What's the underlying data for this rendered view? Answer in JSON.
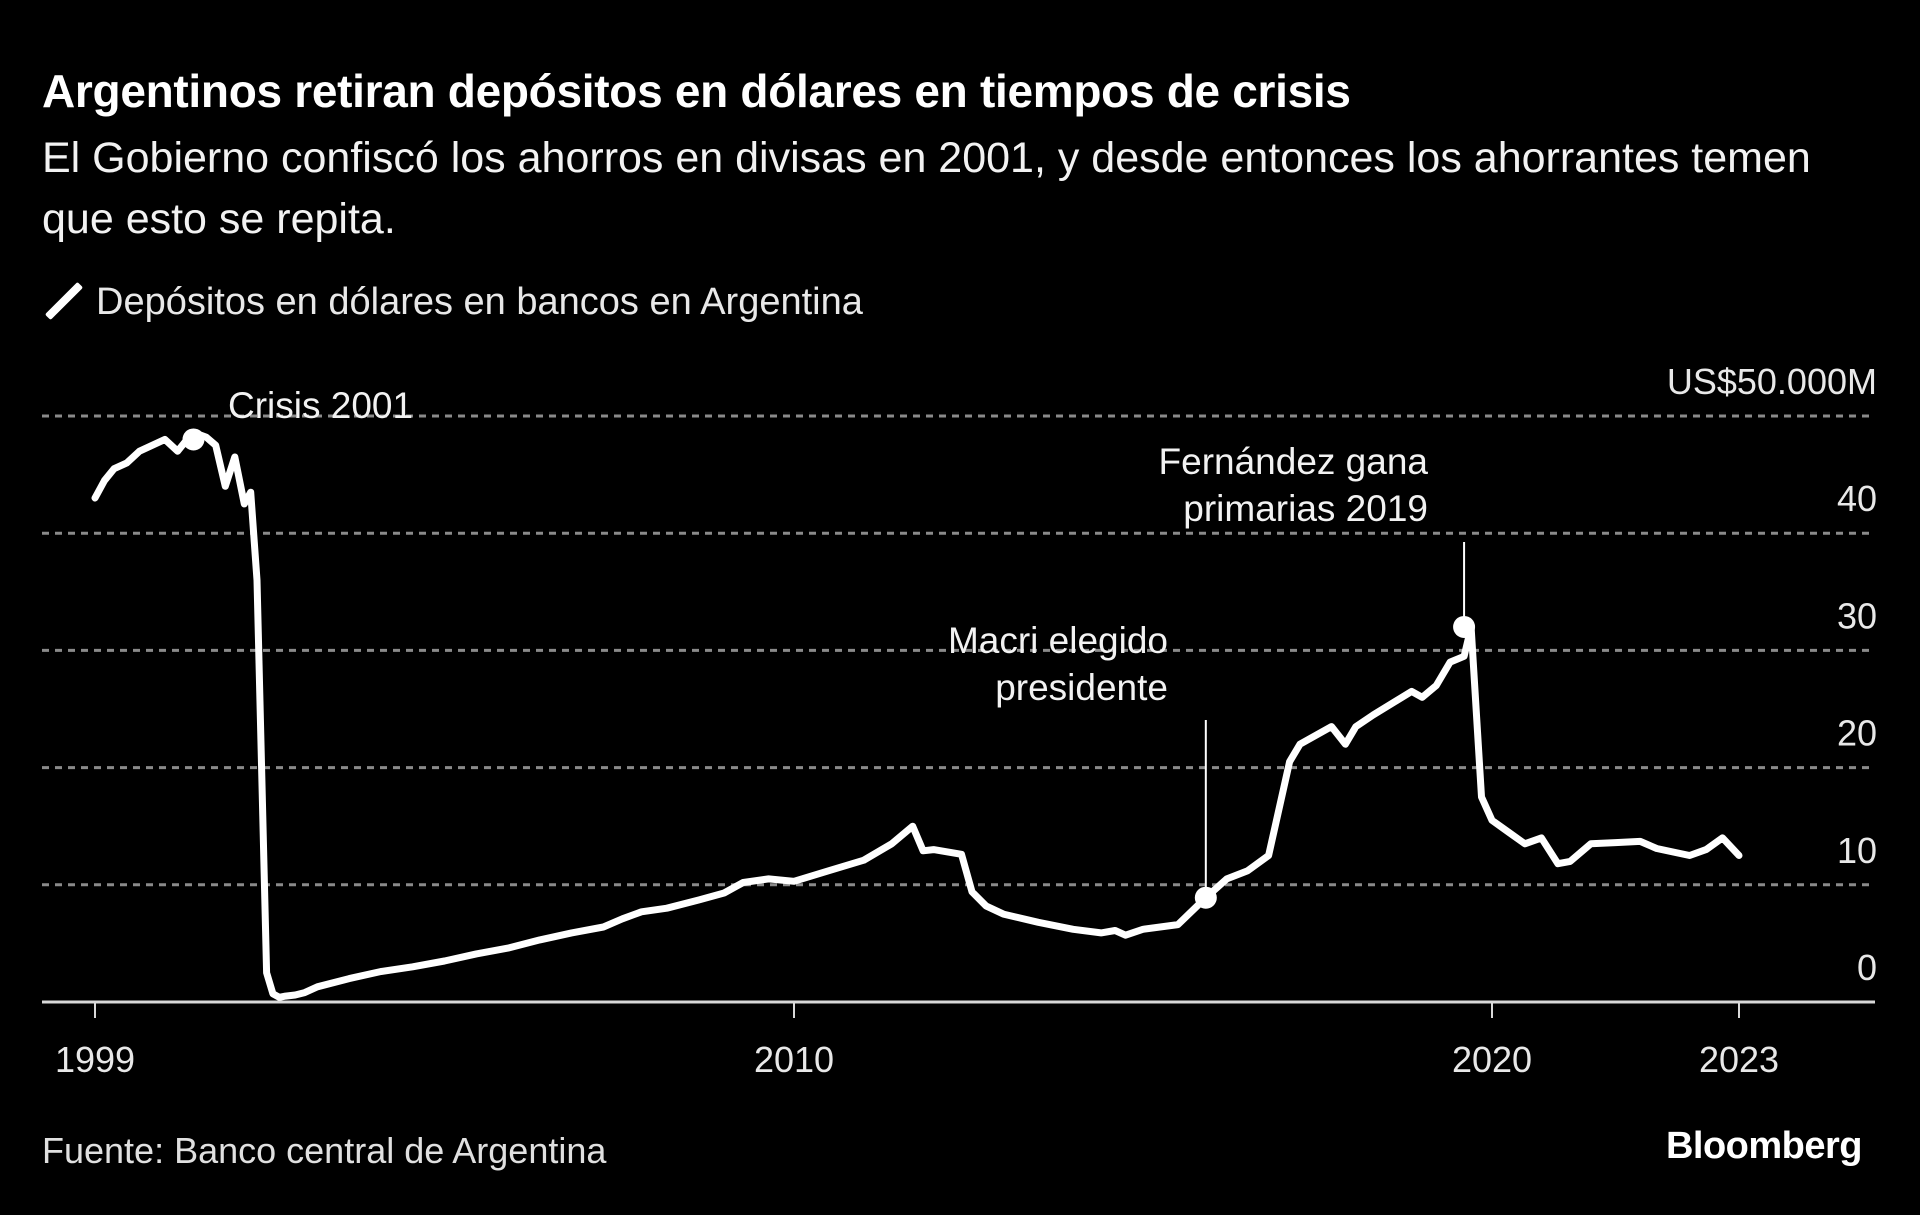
{
  "header": {
    "title": "Argentinos retiran depósitos en dólares en tiempos de crisis",
    "subtitle": "El Gobierno confiscó los ahorros en divisas en 2001, y desde entonces los ahorrantes temen que esto se repita."
  },
  "footer": {
    "source": "Fuente: Banco central de Argentina",
    "brand": "Bloomberg"
  },
  "chart_data": {
    "type": "line",
    "title": "Argentinos retiran depósitos en dólares en tiempos de crisis",
    "subtitle": "El Gobierno confiscó los ahorros en divisas en 2001, y desde entonces los ahorrantes temen que esto se repita.",
    "xlabel": "",
    "ylabel": "",
    "y_unit_label": "US$50.000M",
    "ylim": [
      0,
      50
    ],
    "yticks": [
      0,
      10,
      20,
      30,
      40,
      50
    ],
    "ytick_labels": [
      "0",
      "10",
      "20",
      "30",
      "40",
      "US$50.000M"
    ],
    "xticks": [
      1999,
      2010,
      2020,
      2023
    ],
    "xtick_labels": [
      "1999",
      "2010",
      "2020",
      "2023"
    ],
    "grid": true,
    "legend": {
      "position": "top-left",
      "entries": [
        "Depósitos en dólares en bancos en Argentina"
      ]
    },
    "colors": {
      "background": "#000000",
      "line": "#ffffff",
      "grid": "#8a8a8a",
      "text": "#ffffff"
    },
    "series": [
      {
        "name": "Depósitos en dólares en bancos en Argentina",
        "unit": "US$ miles de millones",
        "x": [
          1999.0,
          1999.15,
          1999.3,
          1999.5,
          1999.7,
          1999.9,
          2000.1,
          2000.3,
          2000.45,
          2000.6,
          2000.75,
          2000.9,
          2001.05,
          2001.2,
          2001.35,
          2001.45,
          2001.55,
          2001.7,
          2001.8,
          2001.9,
          2002.0,
          2002.15,
          2002.3,
          2002.5,
          2003.0,
          2003.5,
          2004.0,
          2004.5,
          2005.0,
          2005.5,
          2006.0,
          2006.5,
          2007.0,
          2007.3,
          2007.6,
          2008.0,
          2008.5,
          2008.9,
          2009.2,
          2009.6,
          2010.0,
          2010.5,
          2011.0,
          2011.4,
          2011.7,
          2011.85,
          2012.0,
          2012.4,
          2012.55,
          2012.75,
          2013.0,
          2013.5,
          2014.0,
          2014.4,
          2014.6,
          2014.75,
          2015.0,
          2015.5,
          2015.9,
          2016.2,
          2016.5,
          2016.8,
          2017.1,
          2017.25,
          2017.4,
          2017.7,
          2017.9,
          2018.05,
          2018.3,
          2018.6,
          2018.85,
          2019.0,
          2019.2,
          2019.4,
          2019.6,
          2019.7,
          2019.85,
          2020.0,
          2020.2,
          2020.4,
          2020.6,
          2020.8,
          2020.95,
          2021.2,
          2021.5,
          2021.8,
          2022.0,
          2022.2,
          2022.4,
          2022.6,
          2022.8,
          2023.0
        ],
        "values": [
          43.0,
          44.5,
          45.5,
          46.0,
          47.0,
          47.5,
          48.0,
          47.0,
          48.0,
          48.5,
          48.2,
          47.5,
          44.0,
          46.5,
          42.5,
          43.5,
          36.0,
          2.5,
          0.7,
          0.4,
          0.5,
          0.6,
          0.8,
          1.3,
          2.0,
          2.6,
          3.0,
          3.5,
          4.1,
          4.6,
          5.3,
          5.9,
          6.4,
          7.1,
          7.7,
          8.0,
          8.7,
          9.3,
          10.2,
          10.5,
          10.3,
          11.2,
          12.1,
          13.5,
          15.0,
          12.9,
          13.0,
          12.6,
          9.4,
          8.2,
          7.5,
          6.8,
          6.2,
          5.9,
          6.1,
          5.7,
          6.2,
          6.6,
          8.9,
          10.5,
          11.2,
          12.5,
          20.5,
          22.0,
          22.5,
          23.5,
          22.0,
          23.5,
          24.5,
          25.6,
          26.5,
          26.0,
          27.0,
          29.0,
          29.5,
          32.0,
          17.5,
          15.5,
          14.5,
          13.5,
          14.0,
          11.8,
          12.0,
          13.5,
          13.6,
          13.7,
          13.1,
          12.8,
          12.5,
          13.0,
          14.0,
          12.5
        ],
        "width_note": "thick white line"
      }
    ],
    "annotations": [
      {
        "label": "Crisis 2001",
        "x": 2000.55,
        "value": 48.0
      },
      {
        "label_lines": [
          "Macri elegido",
          "presidente"
        ],
        "x": 2015.9,
        "value": 8.9
      },
      {
        "label_lines": [
          "Fernández gana",
          "primarias 2019"
        ],
        "x": 2019.6,
        "value": 32.0
      }
    ]
  }
}
